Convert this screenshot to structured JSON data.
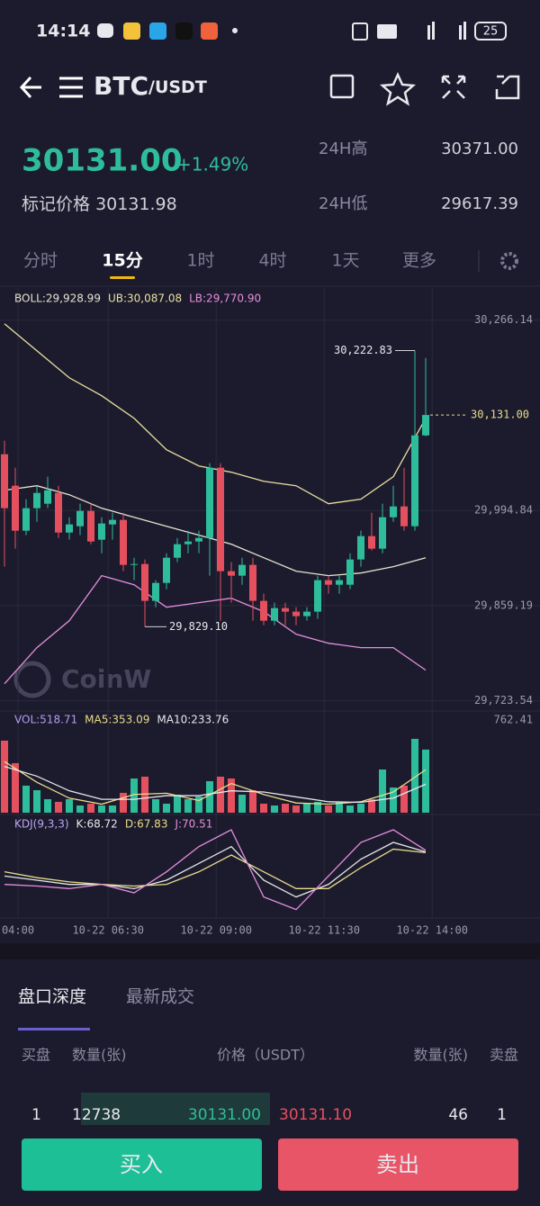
{
  "status_bar": {
    "time": "14:14",
    "battery": "25"
  },
  "header": {
    "base": "BTC",
    "quote": "/USDT"
  },
  "ticker": {
    "price": "30131.00",
    "change": "+1.49%",
    "mark_label": "标记价格",
    "mark_price": "30131.98",
    "high_label": "24H高",
    "high": "30371.00",
    "low_label": "24H低",
    "low": "29617.39"
  },
  "tabs": [
    "分时",
    "15分",
    "1时",
    "4时",
    "1天",
    "更多"
  ],
  "watermark": "CoinW",
  "chart_data": [
    {
      "type": "candlestick",
      "up_color": "#2ebd9b",
      "down_color": "#e5505f",
      "open": [
        30075.0,
        30030.1,
        29966.0,
        29998.1,
        30004.5,
        30019.9,
        29963.4,
        29972.4,
        29994.2,
        29953.2,
        29975.0,
        29981.4,
        29917.3,
        29918.5,
        29866.0,
        29891.6,
        29927.5,
        29946.8,
        29950.6,
        29955.7,
        30055.8,
        29908.3,
        29901.9,
        29917.3,
        29866.0,
        29837.7,
        29855.7,
        29850.6,
        29844.2,
        29850.6,
        29895.5,
        29889.0,
        29889.0,
        29925.0,
        29958.3,
        29940.4,
        29985.2,
        30000.6,
        29972.4,
        30101.9
      ],
      "high": [
        30094.3,
        30055.8,
        30010.9,
        30030.1,
        30043.0,
        30030.1,
        29985.2,
        30004.5,
        30004.5,
        29985.2,
        29991.6,
        29991.6,
        29927.5,
        29925.0,
        29895.5,
        29933.9,
        29955.7,
        29966.0,
        29966.0,
        30062.2,
        30062.2,
        29921.1,
        29927.5,
        29927.5,
        29876.2,
        29863.4,
        29863.4,
        29857.0,
        29857.0,
        29901.9,
        29901.9,
        29901.9,
        29933.9,
        29966.0,
        29991.6,
        30004.5,
        30030.1,
        30055.8,
        30222.83,
        30212.3
      ],
      "low": [
        29914.7,
        29940.4,
        29959.6,
        29978.8,
        29998.1,
        29955.7,
        29953.2,
        29959.6,
        29946.8,
        29933.9,
        29953.2,
        29908.3,
        29895.5,
        29829.1,
        29857.0,
        29882.6,
        29921.1,
        29933.9,
        29933.9,
        29901.9,
        29837.7,
        29863.4,
        29889.0,
        29837.7,
        29831.3,
        29831.3,
        29831.3,
        29831.3,
        29837.7,
        29840.3,
        29876.2,
        29876.2,
        29882.6,
        29914.7,
        29937.8,
        29933.9,
        29978.8,
        29966.0,
        29966.0,
        30100.7
      ],
      "close": [
        29998.1,
        29966.0,
        29998.1,
        30019.9,
        30023.7,
        29963.4,
        29975.0,
        29994.2,
        29950.6,
        29976.3,
        29981.4,
        29917.3,
        29918.5,
        29866.0,
        29891.6,
        29927.5,
        29946.8,
        29950.6,
        29955.7,
        30055.8,
        29908.3,
        29901.9,
        29917.3,
        29866.0,
        29837.7,
        29855.7,
        29850.6,
        29844.2,
        29850.6,
        29895.5,
        29889.0,
        29895.5,
        29925.0,
        29958.3,
        29940.4,
        29985.2,
        30000.6,
        29972.4,
        30101.9,
        30131.0
      ],
      "series": [
        {
          "name": "BOLL:29,928.99",
          "color": "#e6e3d0",
          "x": [
            0,
            3,
            6,
            9,
            12,
            15,
            18,
            21,
            24,
            27,
            30,
            33,
            36,
            39
          ],
          "values": [
            30023.7,
            30030.1,
            30017.3,
            29998.1,
            29985.2,
            29972.4,
            29959.6,
            29946.8,
            29927.5,
            29908.3,
            29901.9,
            29905.7,
            29914.7,
            29927.5
          ]
        },
        {
          "name": "UB:30,087.08",
          "color": "#e8e0a0",
          "x": [
            0,
            3,
            6,
            9,
            12,
            15,
            18,
            21,
            24,
            27,
            30,
            33,
            36,
            39
          ],
          "values": [
            30261.0,
            30222.5,
            30184.0,
            30158.4,
            30126.3,
            30081.4,
            30058.3,
            30049.4,
            30036.5,
            30030.1,
            30004.5,
            30010.9,
            30043.0,
            30126.3
          ]
        },
        {
          "name": "LB:29,770.90",
          "color": "#e48fdc",
          "x": [
            0,
            3,
            6,
            9,
            12,
            15,
            18,
            21,
            24,
            27,
            30,
            33,
            36,
            39
          ],
          "values": [
            29747.9,
            29799.3,
            29837.7,
            29901.9,
            29889.0,
            29857.0,
            29863.4,
            29869.8,
            29850.6,
            29818.5,
            29805.6,
            29799.3,
            29799.3,
            29767.2
          ]
        }
      ],
      "ylim": [
        29709,
        30312
      ],
      "yticks": [
        {
          "value": 30266.14,
          "label": "30,266.14"
        },
        {
          "value": 29994.84,
          "label": "29,994.84"
        },
        {
          "value": 29859.19,
          "label": "29,859.19"
        },
        {
          "value": 29723.54,
          "label": "29,723.54"
        }
      ],
      "last_price": {
        "value": 30131.0,
        "label": "30,131.00"
      },
      "annotations": [
        {
          "index": 38,
          "value": 30222.83,
          "label": "30,222.83"
        },
        {
          "index": 13,
          "value": 29829.1,
          "label": "29,829.10"
        }
      ]
    },
    {
      "type": "bar",
      "name": "VOL:518.71",
      "color": "#b59cf0",
      "values": [
        592,
        407,
        222,
        185,
        111,
        89,
        111,
        59,
        74,
        59,
        59,
        163,
        281,
        296,
        111,
        74,
        148,
        111,
        133,
        259,
        296,
        281,
        148,
        185,
        74,
        59,
        74,
        59,
        74,
        89,
        59,
        89,
        59,
        74,
        111,
        355,
        207,
        222,
        607,
        518.71
      ],
      "series": [
        {
          "name": "MA5:353.09",
          "color": "#e8dc8a",
          "x": [
            0,
            3,
            6,
            9,
            12,
            15,
            18,
            21,
            24,
            27,
            30,
            33,
            36,
            39
          ],
          "values": [
            420,
            250,
            120,
            70,
            150,
            160,
            100,
            240,
            150,
            80,
            70,
            90,
            170,
            353.09
          ]
        },
        {
          "name": "MA10:233.76",
          "color": "#e6e6ea",
          "x": [
            0,
            3,
            6,
            9,
            12,
            15,
            18,
            21,
            24,
            27,
            30,
            33,
            36,
            39
          ],
          "values": [
            380,
            300,
            180,
            110,
            110,
            140,
            140,
            180,
            170,
            130,
            90,
            85,
            120,
            233.76
          ]
        }
      ],
      "ylim": [
        0,
        821
      ],
      "yticks": [
        762.41
      ]
    },
    {
      "type": "line",
      "title": "KDJ(9,3,3)",
      "title_color": "#b9a8f0",
      "series": [
        {
          "name": "K:68.72",
          "color": "#e6e6ea",
          "x": [
            0,
            3,
            6,
            9,
            12,
            15,
            18,
            21,
            24,
            27,
            30,
            33,
            36,
            39
          ],
          "values": [
            40,
            35,
            30,
            30,
            25,
            35,
            55,
            75,
            35,
            15,
            30,
            60,
            80,
            68.72
          ]
        },
        {
          "name": "D:67.83",
          "color": "#e8dc8a",
          "x": [
            0,
            3,
            6,
            9,
            12,
            15,
            18,
            21,
            24,
            27,
            30,
            33,
            36,
            39
          ],
          "values": [
            45,
            38,
            33,
            30,
            28,
            30,
            45,
            65,
            45,
            25,
            25,
            50,
            72,
            67.83
          ]
        },
        {
          "name": "J:70.51",
          "color": "#e48fdc",
          "x": [
            0,
            3,
            6,
            9,
            12,
            15,
            18,
            21,
            24,
            27,
            30,
            33,
            36,
            39
          ],
          "values": [
            30,
            28,
            25,
            30,
            20,
            45,
            75,
            95,
            15,
            0,
            40,
            80,
            95,
            70.51
          ]
        }
      ],
      "ylim": [
        -10,
        110
      ],
      "xticks": [
        {
          "value": 1.25,
          "label": "04:00"
        },
        {
          "value": 9.6,
          "label": "10-22 06:30"
        },
        {
          "value": 19.6,
          "label": "10-22 09:00"
        },
        {
          "value": 29.6,
          "label": "10-22 11:30"
        },
        {
          "value": 39.6,
          "label": "10-22 14:00"
        }
      ]
    }
  ],
  "orderbook": {
    "tabs": [
      "盘口深度",
      "最新成交"
    ],
    "headers": [
      "买盘",
      "数量(张)",
      "价格（USDT）",
      "数量(张)",
      "卖盘"
    ],
    "rows": [
      [
        "1",
        "12738",
        "30131.00",
        "30131.10",
        "46",
        "1"
      ]
    ]
  },
  "buttons": {
    "buy": "买入",
    "sell": "卖出"
  }
}
